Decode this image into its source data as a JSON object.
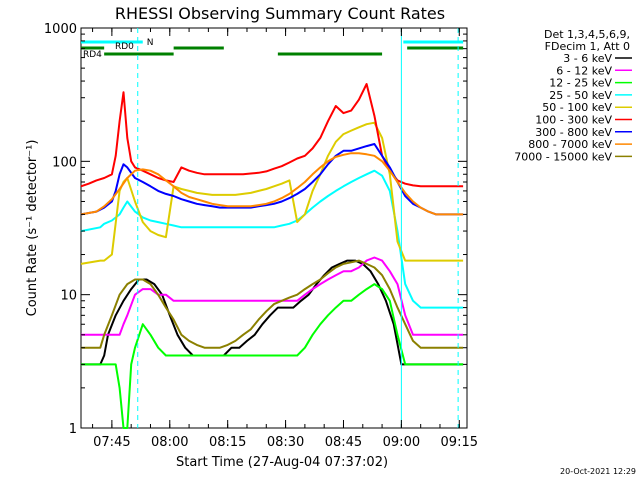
{
  "chart_data": {
    "type": "line",
    "title": "RHESSI Observing Summary Count Rates",
    "xlabel": "Start Time (27-Aug-04 07:37:02)",
    "ylabel": "Count Rate (s⁻¹ detector⁻¹)",
    "x_unit": "minutes after 07:37:02",
    "xlim": [
      0,
      100
    ],
    "x_ticks": [
      {
        "x": 8,
        "label": "07:45"
      },
      {
        "x": 23,
        "label": "08:00"
      },
      {
        "x": 38,
        "label": "08:15"
      },
      {
        "x": 53,
        "label": "08:30"
      },
      {
        "x": 68,
        "label": "08:45"
      },
      {
        "x": 83,
        "label": "09:00"
      },
      {
        "x": 98,
        "label": "09:15"
      }
    ],
    "y_scale": "log",
    "ylim": [
      1,
      1000
    ],
    "y_ticks": [
      {
        "y": 1,
        "label": "1"
      },
      {
        "y": 10,
        "label": "10"
      },
      {
        "y": 100,
        "label": "100"
      },
      {
        "y": 1000,
        "label": "1000"
      }
    ],
    "legend_header": [
      "Det 1,3,4,5,6,9,",
      "FDecim 1, Att 0"
    ],
    "legend_position": "outside-right",
    "series": [
      {
        "name": "3 - 6 keV",
        "color": "#000000",
        "x": [
          0,
          5,
          6,
          7,
          9,
          11,
          13,
          15,
          17,
          19,
          21,
          23,
          25,
          27,
          29,
          31,
          33,
          35,
          37,
          39,
          41,
          43,
          45,
          47,
          49,
          51,
          53,
          55,
          57,
          59,
          61,
          63,
          65,
          67,
          69,
          71,
          73,
          75,
          77,
          79,
          81,
          83,
          85,
          87,
          89,
          91,
          93,
          95,
          97,
          99
        ],
        "y": [
          3,
          3,
          3.5,
          5,
          7,
          9,
          11,
          13,
          13,
          12,
          10,
          7,
          5,
          4,
          3.5,
          3.5,
          3.5,
          3.5,
          3.5,
          4,
          4,
          4.5,
          5,
          6,
          7,
          8,
          8,
          8,
          9,
          10,
          12,
          14,
          16,
          17,
          18,
          18,
          17,
          15,
          12,
          9,
          6,
          3,
          3,
          3,
          3,
          3,
          3,
          3,
          3,
          3
        ]
      },
      {
        "name": "6 - 12 keV",
        "color": "#ff00ff",
        "x": [
          0,
          5,
          6,
          8,
          10,
          11,
          12,
          14,
          16,
          18,
          20,
          22,
          24,
          26,
          28,
          30,
          32,
          34,
          36,
          38,
          40,
          42,
          44,
          46,
          48,
          50,
          52,
          54,
          56,
          58,
          60,
          62,
          64,
          66,
          68,
          70,
          72,
          74,
          76,
          78,
          80,
          82,
          84,
          86,
          88,
          90,
          92,
          94,
          96,
          99
        ],
        "y": [
          5,
          5,
          5,
          5,
          5,
          6,
          7,
          10,
          11,
          11,
          10,
          10,
          9,
          9,
          9,
          9,
          9,
          9,
          9,
          9,
          9,
          9,
          9,
          9,
          9,
          9,
          9,
          9,
          9,
          10,
          11,
          12,
          13,
          14,
          15,
          15,
          16,
          18,
          19,
          18,
          15,
          12,
          7,
          5,
          5,
          5,
          5,
          5,
          5,
          5
        ]
      },
      {
        "name": "12 - 25 keV",
        "color": "#00ff00",
        "x": [
          0,
          5,
          6,
          8,
          9,
          10,
          11,
          12,
          13,
          14,
          16,
          18,
          20,
          22,
          24,
          26,
          28,
          30,
          32,
          34,
          36,
          38,
          40,
          42,
          44,
          46,
          48,
          50,
          52,
          54,
          56,
          58,
          60,
          62,
          64,
          66,
          68,
          70,
          72,
          74,
          76,
          78,
          80,
          82,
          84,
          86,
          88,
          90,
          92,
          94,
          96,
          99
        ],
        "y": [
          3,
          3,
          3,
          3,
          3,
          2,
          1,
          1,
          3,
          4,
          6,
          5,
          4,
          3.5,
          3.5,
          3.5,
          3.5,
          3.5,
          3.5,
          3.5,
          3.5,
          3.5,
          3.5,
          3.5,
          3.5,
          3.5,
          3.5,
          3.5,
          3.5,
          3.5,
          3.5,
          4,
          5,
          6,
          7,
          8,
          9,
          9,
          10,
          11,
          12,
          11,
          9,
          5,
          3,
          3,
          3,
          3,
          3,
          3,
          3,
          3
        ]
      },
      {
        "name": "25 - 50 keV",
        "color": "#00ffff",
        "x": [
          0,
          5,
          6,
          8,
          10,
          11,
          12,
          14,
          16,
          18,
          20,
          22,
          24,
          26,
          28,
          30,
          32,
          34,
          36,
          38,
          40,
          42,
          44,
          46,
          48,
          50,
          52,
          54,
          56,
          58,
          60,
          62,
          64,
          66,
          68,
          70,
          72,
          74,
          76,
          78,
          80,
          82,
          84,
          86,
          88,
          90,
          92,
          94,
          96,
          99
        ],
        "y": [
          30,
          32,
          34,
          36,
          40,
          45,
          50,
          42,
          38,
          36,
          35,
          34,
          33,
          32,
          32,
          32,
          32,
          32,
          32,
          32,
          32,
          32,
          32,
          32,
          32,
          32,
          33,
          34,
          36,
          40,
          45,
          50,
          55,
          60,
          65,
          70,
          75,
          80,
          85,
          78,
          60,
          30,
          12,
          9,
          8,
          8,
          8,
          8,
          8,
          8
        ]
      },
      {
        "name": "50 - 100 keV",
        "color": "#ddcc00",
        "x": [
          0,
          5,
          6,
          8,
          10,
          11,
          12,
          14,
          16,
          18,
          20,
          22,
          24,
          26,
          28,
          30,
          32,
          34,
          36,
          38,
          40,
          42,
          44,
          46,
          48,
          50,
          52,
          54,
          56,
          58,
          60,
          62,
          64,
          66,
          68,
          70,
          72,
          74,
          76,
          78,
          80,
          82,
          84,
          86,
          88,
          90,
          92,
          94,
          96,
          99
        ],
        "y": [
          17,
          18,
          18,
          20,
          60,
          70,
          75,
          50,
          35,
          30,
          28,
          27,
          65,
          62,
          60,
          58,
          57,
          56,
          56,
          56,
          56,
          57,
          58,
          60,
          62,
          65,
          68,
          72,
          35,
          40,
          60,
          80,
          110,
          140,
          160,
          170,
          180,
          190,
          195,
          150,
          80,
          25,
          18,
          18,
          18,
          18,
          18,
          18,
          18,
          18
        ]
      },
      {
        "name": "100 - 300 keV",
        "color": "#ff0000",
        "x": [
          0,
          2,
          4,
          6,
          8,
          9,
          10,
          11,
          12,
          13,
          14,
          16,
          18,
          20,
          22,
          24,
          26,
          28,
          30,
          32,
          34,
          36,
          38,
          40,
          42,
          44,
          46,
          48,
          50,
          52,
          54,
          56,
          58,
          60,
          62,
          64,
          66,
          68,
          70,
          72,
          74,
          76,
          78,
          80,
          82,
          84,
          86,
          88,
          90,
          92,
          94,
          96,
          99
        ],
        "y": [
          65,
          68,
          72,
          75,
          80,
          110,
          200,
          330,
          150,
          100,
          90,
          85,
          80,
          75,
          72,
          70,
          90,
          85,
          82,
          80,
          80,
          80,
          80,
          80,
          80,
          81,
          82,
          84,
          88,
          92,
          98,
          105,
          110,
          125,
          150,
          200,
          260,
          230,
          240,
          290,
          380,
          220,
          110,
          85,
          72,
          68,
          66,
          65,
          65,
          65,
          65,
          65,
          65
        ]
      },
      {
        "name": "300 - 800 keV",
        "color": "#0000ff",
        "x": [
          0,
          4,
          6,
          8,
          9,
          10,
          11,
          12,
          13,
          14,
          16,
          18,
          20,
          22,
          24,
          26,
          28,
          30,
          32,
          34,
          36,
          38,
          40,
          42,
          44,
          46,
          48,
          50,
          52,
          54,
          56,
          58,
          60,
          62,
          64,
          66,
          68,
          70,
          72,
          74,
          76,
          78,
          80,
          82,
          84,
          86,
          88,
          90,
          92,
          94,
          96,
          99
        ],
        "y": [
          40,
          42,
          45,
          50,
          60,
          80,
          95,
          90,
          82,
          75,
          70,
          65,
          60,
          57,
          55,
          52,
          50,
          48,
          47,
          46,
          45,
          45,
          45,
          45,
          45,
          46,
          47,
          48,
          50,
          53,
          57,
          62,
          70,
          80,
          95,
          110,
          120,
          120,
          125,
          130,
          135,
          110,
          90,
          70,
          55,
          48,
          45,
          42,
          40,
          40,
          40,
          40
        ]
      },
      {
        "name": "800 - 7000 keV",
        "color": "#ff8800",
        "x": [
          0,
          4,
          6,
          8,
          10,
          12,
          14,
          16,
          18,
          20,
          22,
          24,
          26,
          28,
          30,
          32,
          34,
          36,
          38,
          40,
          42,
          44,
          46,
          48,
          50,
          52,
          54,
          56,
          58,
          60,
          62,
          64,
          66,
          68,
          70,
          72,
          74,
          76,
          78,
          80,
          82,
          84,
          86,
          88,
          90,
          92,
          94,
          96,
          99
        ],
        "y": [
          40,
          42,
          46,
          52,
          62,
          75,
          85,
          87,
          85,
          80,
          72,
          65,
          58,
          54,
          52,
          50,
          48,
          47,
          46,
          46,
          46,
          46,
          47,
          48,
          50,
          53,
          57,
          63,
          70,
          80,
          90,
          100,
          108,
          112,
          115,
          115,
          113,
          110,
          100,
          85,
          70,
          58,
          50,
          45,
          42,
          40,
          40,
          40,
          40
        ]
      },
      {
        "name": "7000 - 15000 keV",
        "color": "#8b8000",
        "x": [
          0,
          5,
          6,
          8,
          10,
          12,
          14,
          16,
          18,
          20,
          22,
          24,
          26,
          28,
          30,
          32,
          34,
          36,
          38,
          40,
          42,
          44,
          46,
          48,
          50,
          52,
          54,
          56,
          58,
          60,
          62,
          64,
          66,
          68,
          70,
          72,
          74,
          76,
          78,
          80,
          82,
          84,
          86,
          88,
          90,
          92,
          94,
          96,
          99
        ],
        "y": [
          4,
          4,
          5,
          7,
          10,
          12,
          13,
          13,
          12,
          10,
          8,
          6.5,
          5,
          4.5,
          4.2,
          4,
          4,
          4,
          4.2,
          4.5,
          5,
          5.5,
          6.5,
          7.5,
          8.5,
          9,
          9.5,
          10,
          11,
          12,
          13,
          14.5,
          16,
          17,
          17.5,
          18,
          17,
          16,
          14,
          11,
          8,
          6,
          4.5,
          4,
          4,
          4,
          4,
          4,
          4
        ]
      }
    ],
    "annotations": [
      {
        "label": "N",
        "color": "#00ffff",
        "segments": [
          [
            0,
            16
          ],
          [
            83.5,
            99
          ]
        ]
      },
      {
        "label": "RD0",
        "color": "#008000",
        "segments": [
          [
            0,
            6
          ],
          [
            24,
            37
          ],
          [
            84.5,
            99
          ]
        ]
      },
      {
        "label": "RD4",
        "color": "#008000",
        "segments": [
          [
            6,
            24
          ],
          [
            51,
            78
          ]
        ]
      }
    ],
    "vertical_markers": [
      {
        "x": 14.7,
        "color": "#00ffff",
        "style": "dashed"
      },
      {
        "x": 83,
        "color": "#00ffff",
        "style": "solid"
      },
      {
        "x": 97.7,
        "color": "#00ffff",
        "style": "dashed"
      }
    ],
    "timestamp": "20-Oct-2021 12:29"
  }
}
